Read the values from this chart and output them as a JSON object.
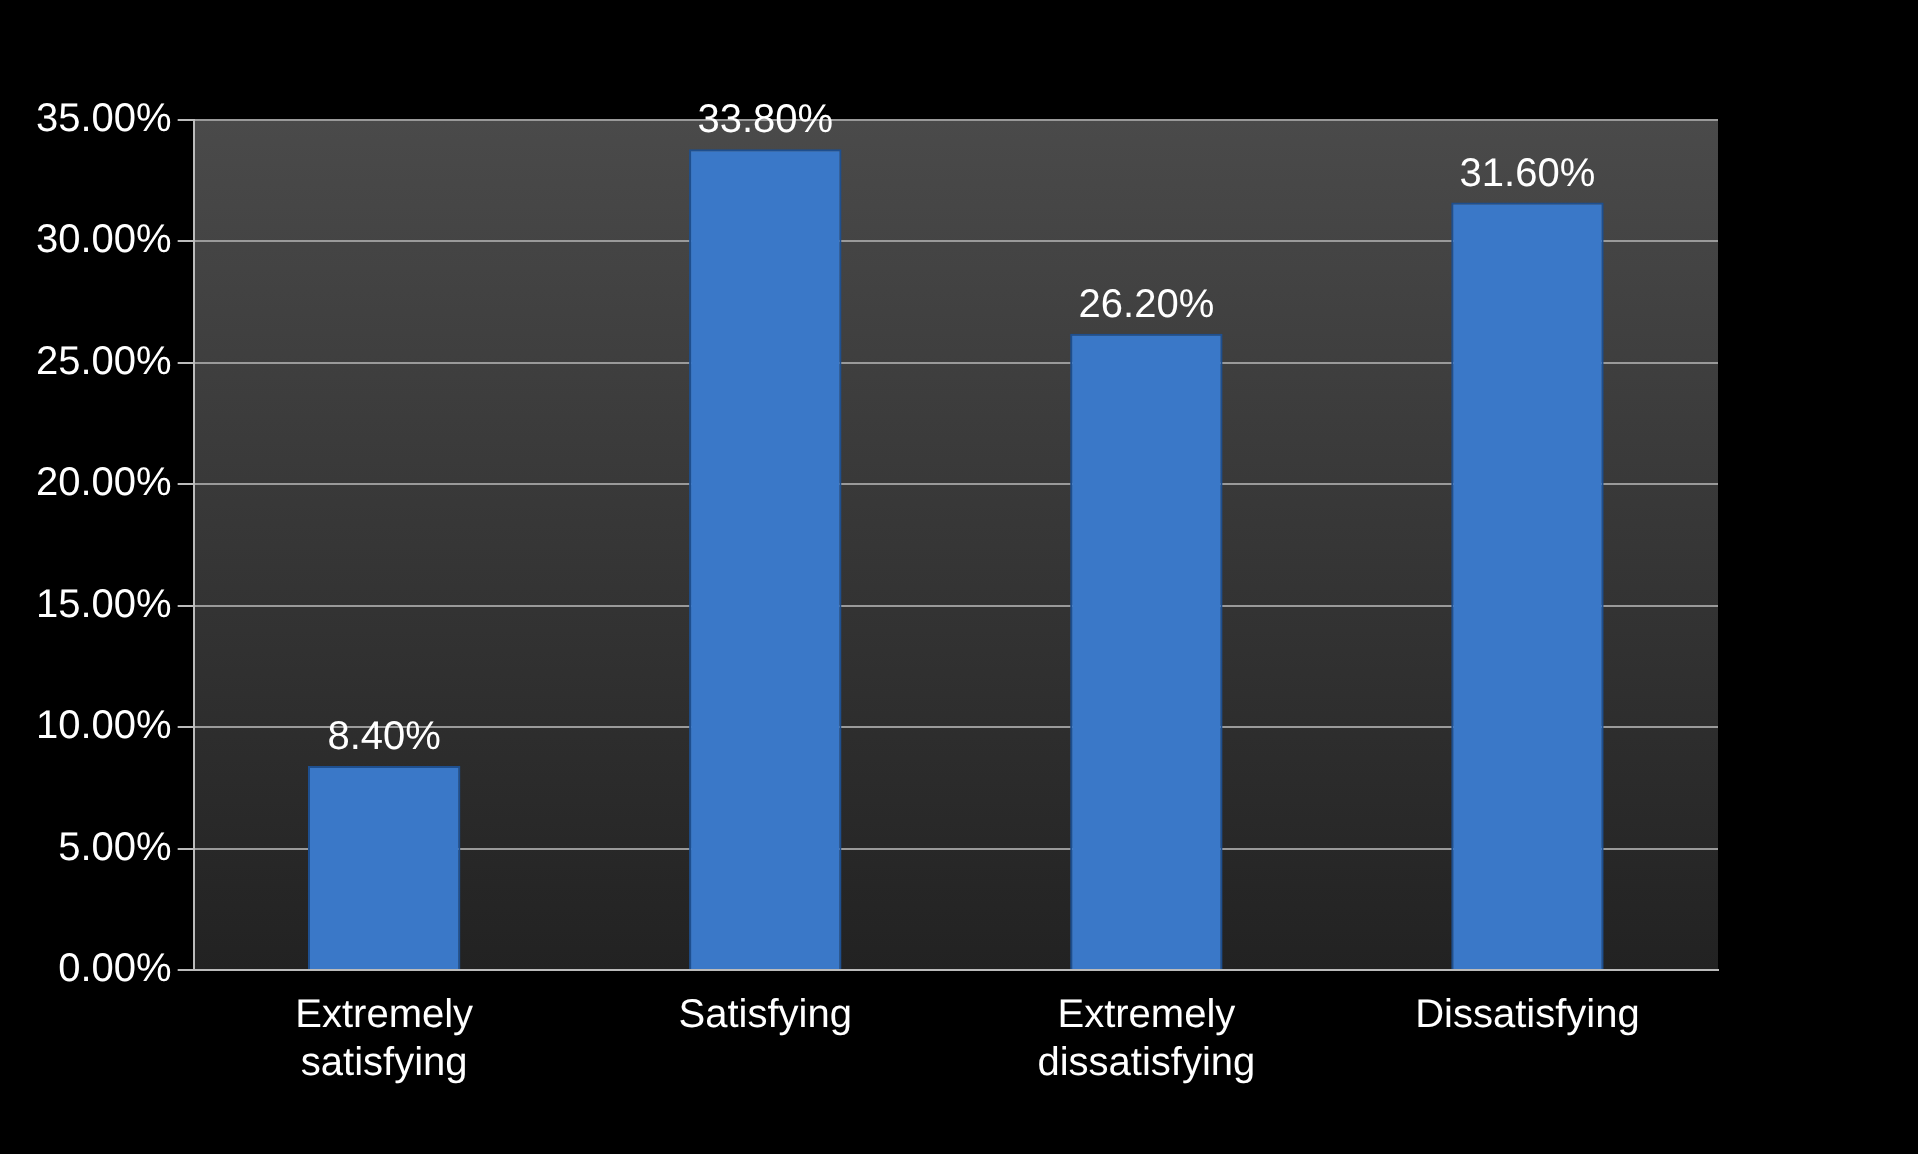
{
  "chart_data": {
    "type": "bar",
    "categories": [
      "Extremely satisfying",
      "Satisfying",
      "Extremely dissatisfying",
      "Dissatisfying"
    ],
    "values": [
      8.4,
      33.8,
      26.2,
      31.6
    ],
    "value_labels": [
      "8.40%",
      "33.80%",
      "26.20%",
      "31.60%"
    ],
    "color": "#3a78c8",
    "ylim": [
      0,
      35
    ],
    "yticks": [
      {
        "value": 0,
        "label": "0.00%"
      },
      {
        "value": 5,
        "label": "5.00%"
      },
      {
        "value": 10,
        "label": "10.00%"
      },
      {
        "value": 15,
        "label": "15.00%"
      },
      {
        "value": 20,
        "label": "20.00%"
      },
      {
        "value": 25,
        "label": "25.00%"
      },
      {
        "value": 30,
        "label": "30.00%"
      },
      {
        "value": 35,
        "label": "35.00%"
      }
    ],
    "grid": "y"
  }
}
